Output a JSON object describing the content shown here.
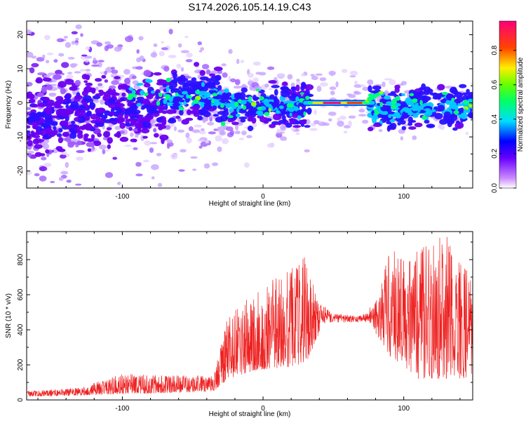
{
  "title": "S174.2026.105.14.19.C43",
  "colors": {
    "snr_line": "#ee2222",
    "spectrogram_low": "#b48cff",
    "spectrogram_mid": "#5a00e6",
    "axis": "#000000"
  },
  "chart_data": [
    {
      "type": "heatmap",
      "name": "spectrogram",
      "xlabel": "Height of straight line (km)",
      "ylabel": "Frequency (Hz)",
      "xlim": [
        -168,
        149
      ],
      "ylim": [
        -25,
        24
      ],
      "xticks": [
        -100,
        0,
        100
      ],
      "yticks": [
        20,
        10,
        0,
        -10,
        -20
      ],
      "xtick_labels": [
        "-100",
        "0",
        "100"
      ],
      "ytick_labels": [
        "20",
        "10",
        "0",
        "-10",
        "-20"
      ],
      "colorbar": {
        "label": "Normalized spectral amplitude",
        "range": [
          0,
          0.97
        ],
        "ticks": [
          0.0,
          0.2,
          0.4,
          0.6,
          0.8
        ],
        "tick_labels": [
          "0.0",
          "0.2",
          "0.4",
          "0.6",
          "0.8"
        ],
        "colormap": [
          "#ffffff",
          "#8800ff",
          "#0000ff",
          "#00ffff",
          "#00ff00",
          "#ffff00",
          "#ff0000",
          "#ff0088"
        ]
      },
      "features": {
        "centerline_segments": [
          {
            "x": [
              -168,
              30
            ],
            "freq": 0,
            "spread": [
              14,
              8
            ],
            "amplitude": 0.25
          },
          {
            "x": [
              35,
              75
            ],
            "freq": 0,
            "spread": [
              1,
              1
            ],
            "amplitude": 0.9
          },
          {
            "x": [
              75,
              149
            ],
            "freq": 0,
            "spread": [
              6,
              5
            ],
            "amplitude": 0.35
          }
        ]
      }
    },
    {
      "type": "line",
      "name": "snr",
      "xlabel": "Height of straight line (km)",
      "ylabel": "SNR (10 * v/v)",
      "xlim": [
        -168,
        149
      ],
      "ylim": [
        0,
        960
      ],
      "xticks": [
        -100,
        0,
        100
      ],
      "yticks": [
        0,
        200,
        400,
        600,
        800
      ],
      "xtick_labels": [
        "-100",
        "0",
        "100"
      ],
      "ytick_labels": [
        "0",
        "200",
        "400",
        "600",
        "800"
      ],
      "envelope": [
        {
          "x": -168,
          "base": 20,
          "peak": 50
        },
        {
          "x": -130,
          "base": 25,
          "peak": 70
        },
        {
          "x": -100,
          "base": 35,
          "peak": 150
        },
        {
          "x": -60,
          "base": 40,
          "peak": 140
        },
        {
          "x": -35,
          "base": 50,
          "peak": 140
        },
        {
          "x": -25,
          "base": 120,
          "peak": 480
        },
        {
          "x": -5,
          "base": 170,
          "peak": 620
        },
        {
          "x": 10,
          "base": 180,
          "peak": 720
        },
        {
          "x": 30,
          "base": 200,
          "peak": 820
        },
        {
          "x": 40,
          "base": 380,
          "peak": 560
        },
        {
          "x": 50,
          "base": 420,
          "peak": 490
        },
        {
          "x": 70,
          "base": 430,
          "peak": 480
        },
        {
          "x": 80,
          "base": 380,
          "peak": 560
        },
        {
          "x": 90,
          "base": 250,
          "peak": 850
        },
        {
          "x": 110,
          "base": 120,
          "peak": 850
        },
        {
          "x": 130,
          "base": 120,
          "peak": 960
        },
        {
          "x": 149,
          "base": 120,
          "peak": 680
        }
      ]
    }
  ]
}
